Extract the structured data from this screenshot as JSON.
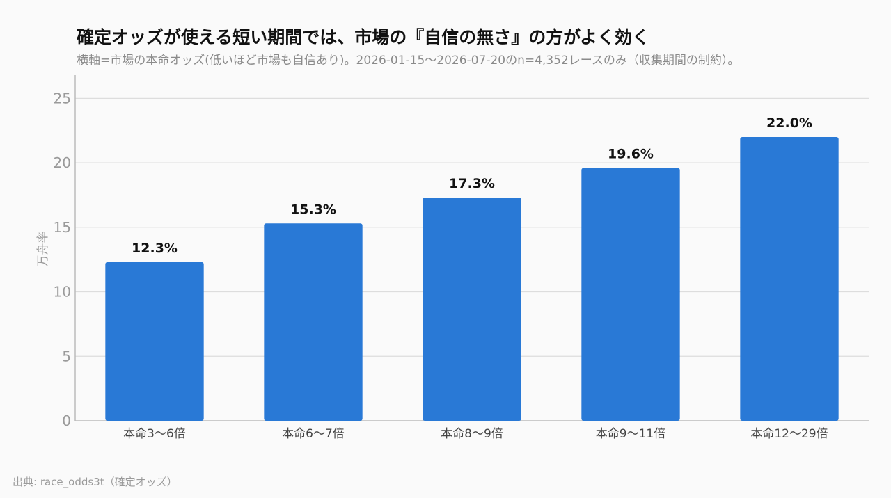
{
  "title": "確定オッズが使える短い期間では、市場の『自信の無さ』の方がよく効く",
  "subtitle": "横軸=市場の本命オッズ(低いほど市場も自信あり)。2026-01-15〜2026-07-20のn=4,352レースのみ（収集期間の制約）。",
  "source": "出典: race_odds3t（確定オッズ）",
  "colors": {
    "bar": "#2979d6",
    "grid": "#dddddd",
    "axis": "#bbbbbb"
  },
  "chart_data": {
    "type": "bar",
    "categories": [
      "本命3〜6倍",
      "本命6〜7倍",
      "本命8〜9倍",
      "本命9〜11倍",
      "本命12〜29倍"
    ],
    "values": [
      12.3,
      15.3,
      17.3,
      19.6,
      22.0
    ],
    "data_labels": [
      "12.3%",
      "15.3%",
      "17.3%",
      "19.6%",
      "22.0%"
    ],
    "xlabel": "",
    "ylabel": "万舟率",
    "ylim": [
      0,
      26.8
    ],
    "yticks": [
      0,
      5,
      10,
      15,
      20,
      25
    ],
    "grid": true,
    "legend": "none"
  }
}
